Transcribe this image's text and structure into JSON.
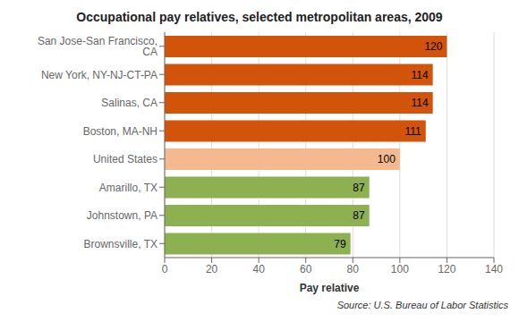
{
  "chart_data": {
    "type": "bar",
    "orientation": "horizontal",
    "title": "Occupational pay relatives, selected metropolitan areas, 2009",
    "categories": [
      "San Jose-San Francisco, CA",
      "New York, NY-NJ-CT-PA",
      "Salinas, CA",
      "Boston, MA-NH",
      "United States",
      "Amarillo, TX",
      "Johnstown, PA",
      "Brownsville, TX"
    ],
    "values": [
      120,
      114,
      114,
      111,
      100,
      87,
      87,
      79
    ],
    "colors": [
      "#d2540a",
      "#d2540a",
      "#d2540a",
      "#d2540a",
      "#f5b990",
      "#8db050",
      "#8db050",
      "#8db050"
    ],
    "xlabel": "Pay relative",
    "xlim": [
      0,
      140
    ],
    "xticks": [
      0,
      20,
      40,
      60,
      80,
      100,
      120,
      140
    ],
    "grid": true,
    "data_labels": true,
    "annotations": [
      "Source: U.S. Bureau of Labor Statistics"
    ]
  }
}
